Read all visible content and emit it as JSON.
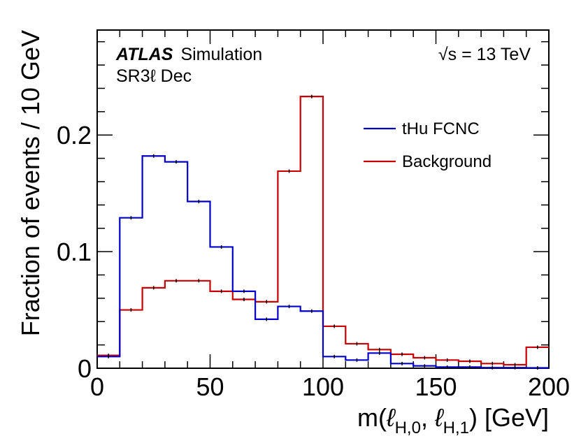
{
  "chart_data": {
    "type": "histogram",
    "xlabel": "m(ℓH,0, ℓH,1) [GeV]",
    "xlabel_parts": {
      "prefix": "m(",
      "ell": "ℓ",
      "sub0": "H,0",
      "sep": ", ",
      "sub1": "H,1",
      "suffix": ") [GeV]"
    },
    "ylabel": "Fraction of events / 10 GeV",
    "xlim": [
      0,
      200
    ],
    "ylim": [
      0,
      0.29
    ],
    "xticks": [
      0,
      50,
      100,
      150,
      200
    ],
    "xtick_labels": [
      "0",
      "50",
      "100",
      "150",
      "200"
    ],
    "yticks": [
      0,
      0.1,
      0.2
    ],
    "ytick_labels": [
      "0",
      "0.1",
      "0.2"
    ],
    "bin_edges": [
      0,
      10,
      20,
      30,
      40,
      50,
      60,
      70,
      80,
      90,
      100,
      110,
      120,
      130,
      140,
      150,
      160,
      170,
      180,
      190,
      200
    ],
    "series": [
      {
        "name": "tHu FCNC",
        "color": "#0000c8",
        "values": [
          0.01,
          0.129,
          0.182,
          0.177,
          0.143,
          0.104,
          0.066,
          0.042,
          0.053,
          0.049,
          0.01,
          0.007,
          0.013,
          0.004,
          0.002,
          0.001,
          0.001,
          0.0005,
          0.0005,
          0.0003
        ]
      },
      {
        "name": "Background",
        "color": "#c80000",
        "values": [
          0.011,
          0.05,
          0.069,
          0.075,
          0.075,
          0.066,
          0.059,
          0.057,
          0.169,
          0.233,
          0.036,
          0.021,
          0.016,
          0.012,
          0.009,
          0.007,
          0.006,
          0.004,
          0.003,
          0.018
        ]
      }
    ],
    "annotations": {
      "experiment": "ATLAS",
      "label": "Simulation",
      "region": "SR3ℓ Dec",
      "energy_prefix": "√s",
      "energy_suffix": " = 13 TeV"
    },
    "legend_position": "top-right"
  }
}
